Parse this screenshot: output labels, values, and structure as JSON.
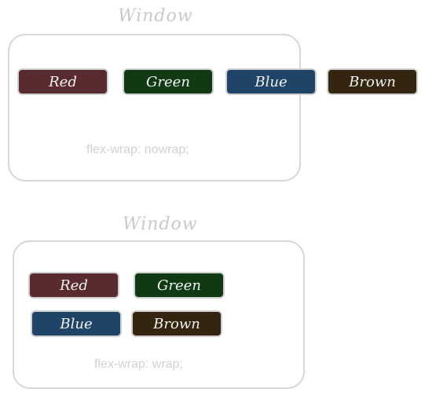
{
  "top": {
    "title": "Window",
    "caption": "flex-wrap: nowrap;",
    "items": [
      "Red",
      "Green",
      "Blue",
      "Brown"
    ]
  },
  "bottom": {
    "title": "Window",
    "caption": "flex-wrap: wrap;",
    "items": [
      "Red",
      "Green",
      "Blue",
      "Brown"
    ]
  },
  "colors": {
    "red": "#5a2b2e",
    "green": "#0f3a14",
    "blue": "#1f4467",
    "brown": "#33250f",
    "frame": "#d7d7d7",
    "label": "#c9c9c9"
  }
}
